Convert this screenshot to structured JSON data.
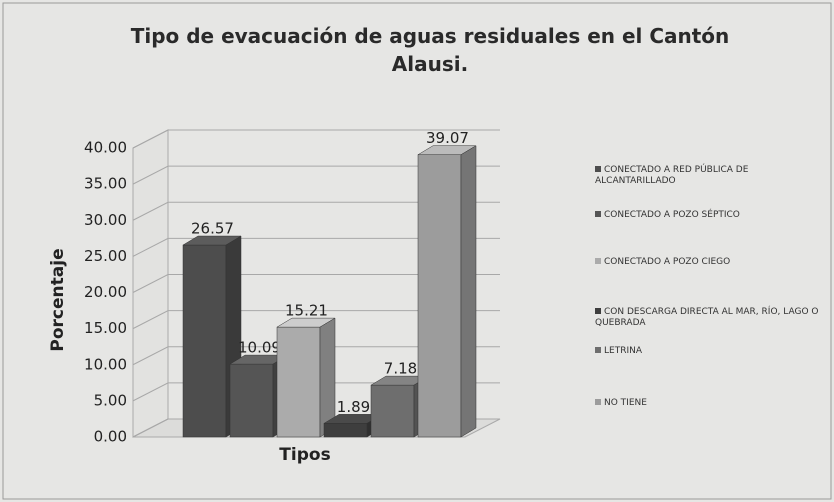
{
  "chart_data": {
    "type": "bar3d",
    "title": "Tipo de evacuación de aguas residuales en el Cantón Alausi.",
    "x_label": "Tipos",
    "y_label": "Porcentaje",
    "categories": [
      null
    ],
    "series": [
      {
        "name": "CONECTADO A RED PÚBLICA DE ALCANTARILLADO",
        "color": "#4d4d4d",
        "values": [
          26.57
        ]
      },
      {
        "name": "CONECTADO A POZO SÉPTICO",
        "color": "#555555",
        "values": [
          10.09
        ]
      },
      {
        "name": "CONECTADO A POZO CIEGO",
        "color": "#ababab",
        "values": [
          15.21
        ]
      },
      {
        "name": "CON DESCARGA DIRECTA AL MAR, RÍO, LAGO O QUEBRADA",
        "color": "#3e3e3e",
        "values": [
          1.89
        ]
      },
      {
        "name": "LETRINA",
        "color": "#6e6e6e",
        "values": [
          7.18
        ]
      },
      {
        "name": "NO TIENE",
        "color": "#9c9c9c",
        "values": [
          39.07
        ]
      }
    ],
    "ylim": [
      0,
      40
    ],
    "yticks": [
      {
        "value": 0,
        "label": "0.00"
      },
      {
        "value": 5,
        "label": "5.00"
      },
      {
        "value": 10,
        "label": "10.00"
      },
      {
        "value": 15,
        "label": "15.00"
      },
      {
        "value": 20,
        "label": "20.00"
      },
      {
        "value": 25,
        "label": "25.00"
      },
      {
        "value": 30,
        "label": "30.00"
      },
      {
        "value": 35,
        "label": "35.00"
      },
      {
        "value": 40,
        "label": "40.00"
      }
    ],
    "grid": true
  }
}
